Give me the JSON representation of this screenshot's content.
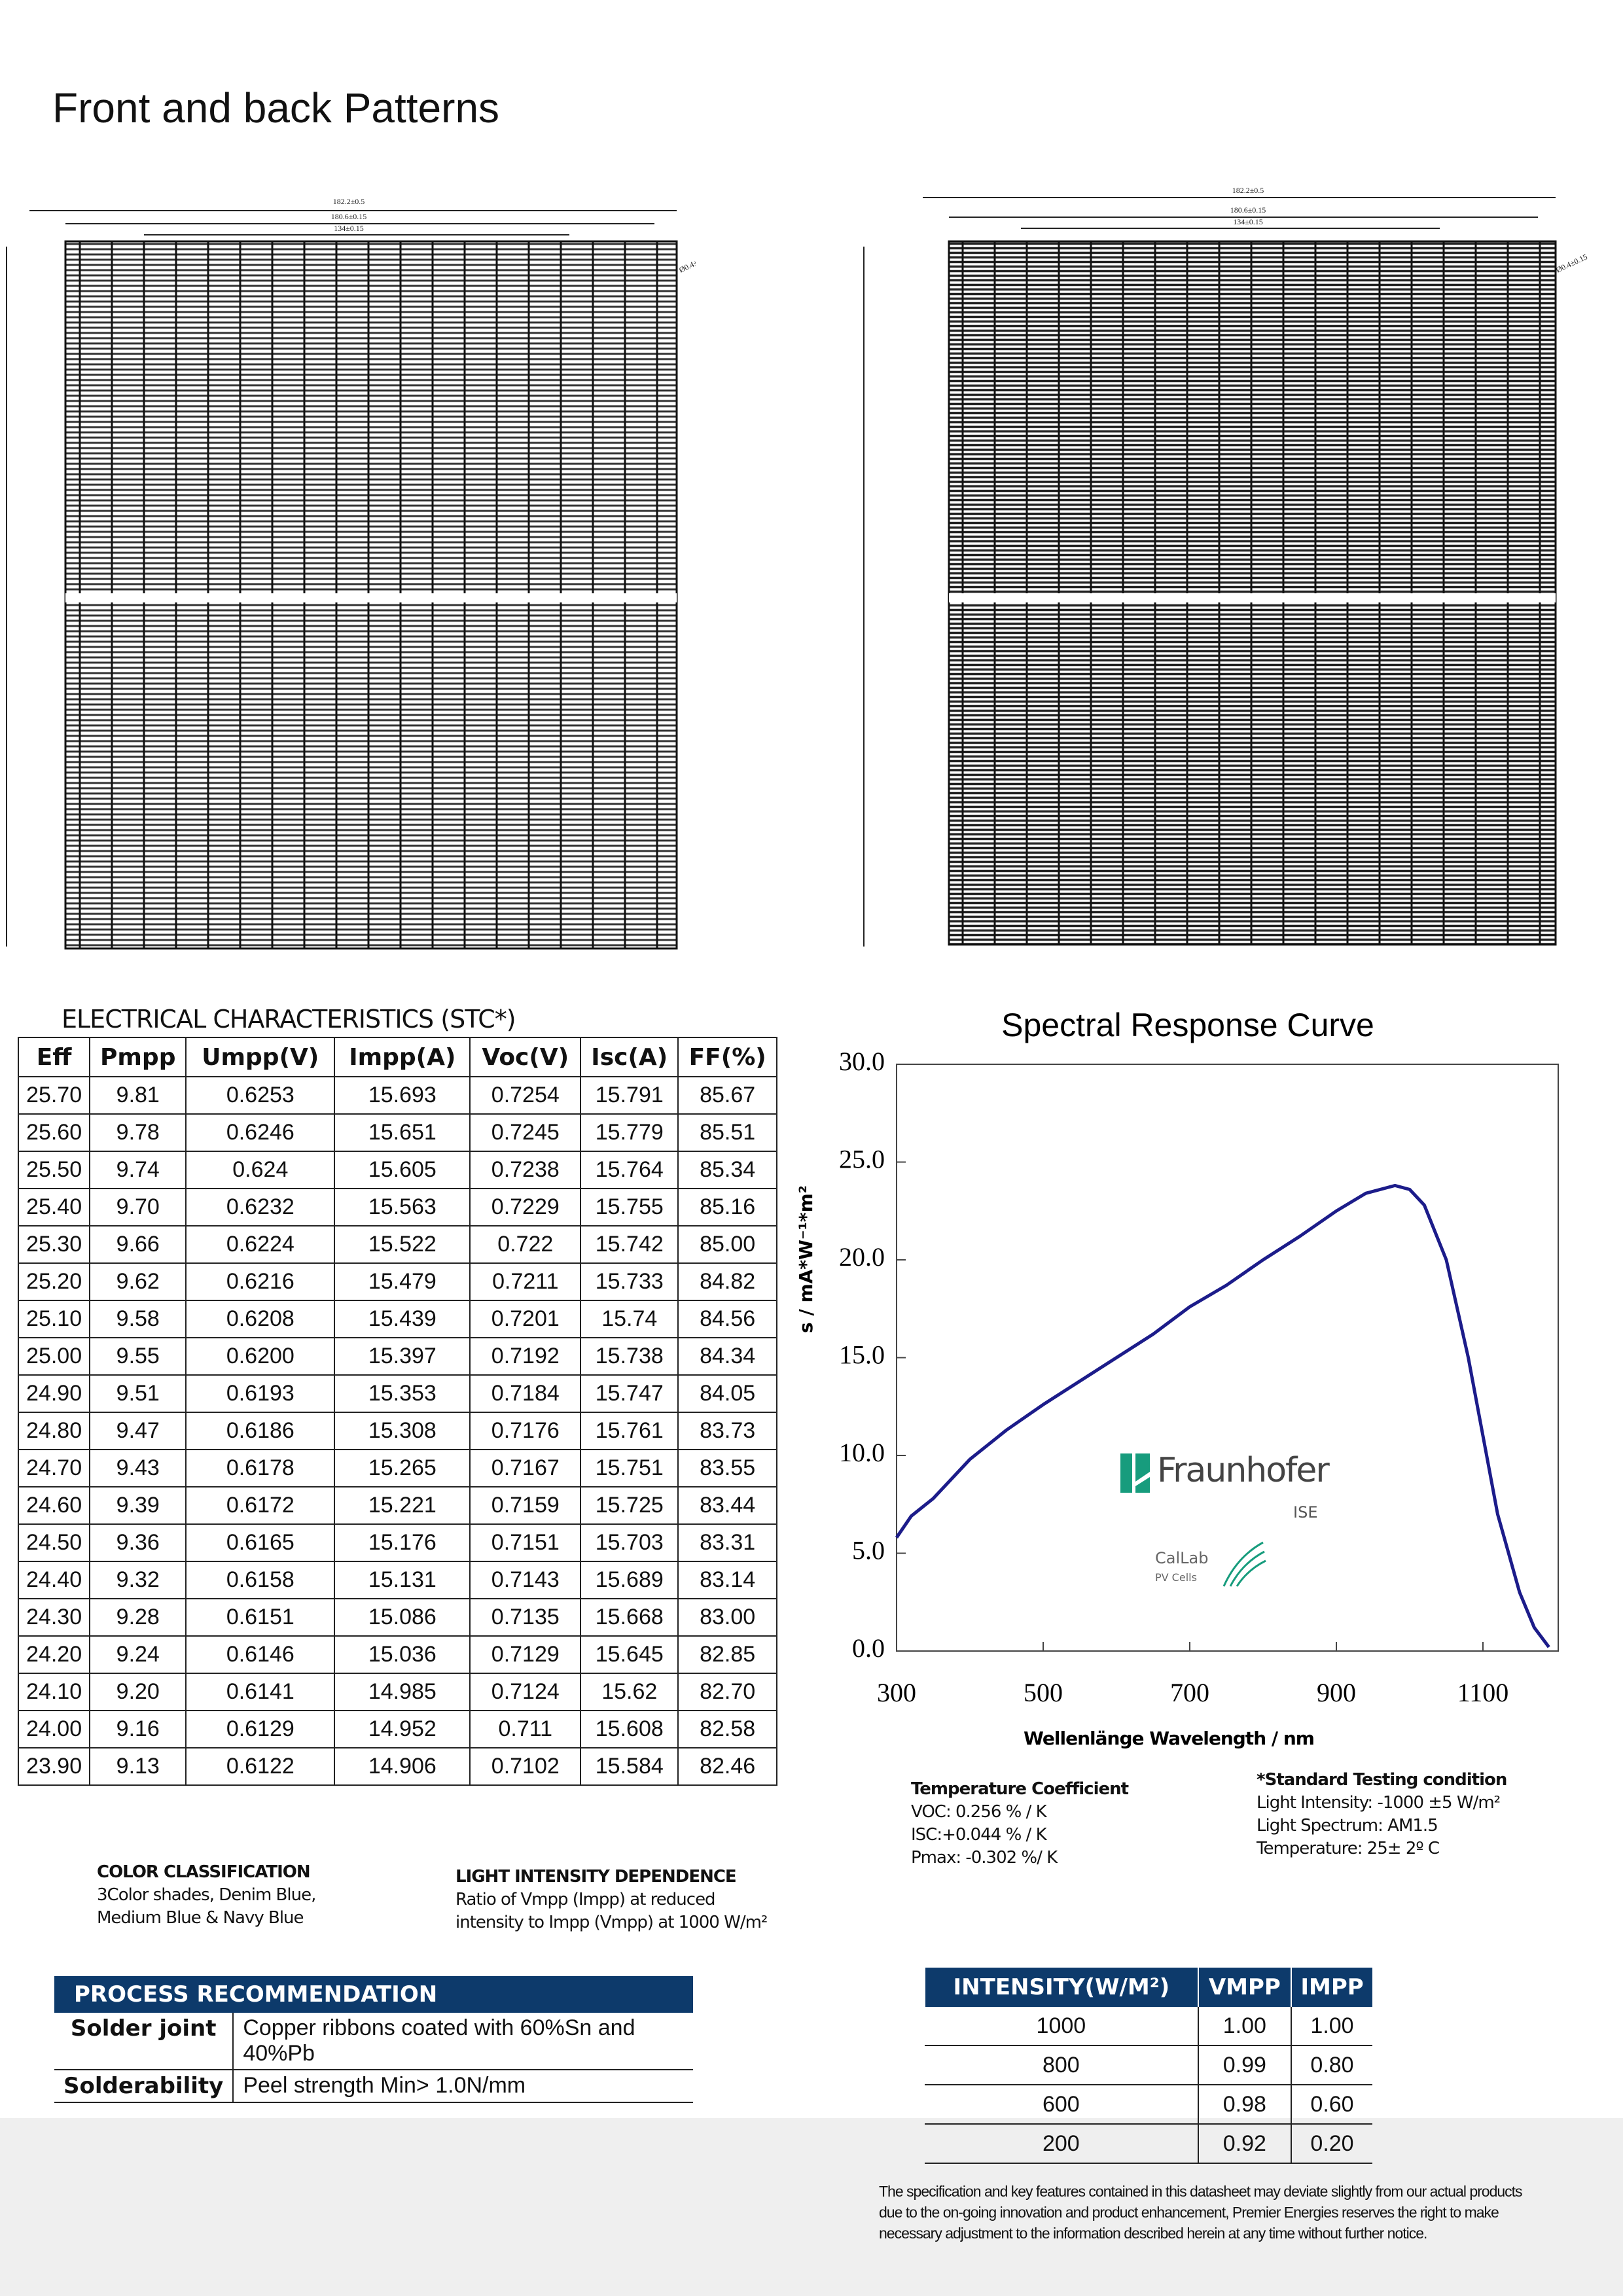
{
  "header": {
    "title": "Front and back Patterns"
  },
  "patterns": {
    "front": {
      "labels": [
        "182.2±0.5",
        "180.6±0.15",
        "134±0.15",
        "Ø0.4±0.15"
      ]
    },
    "back": {
      "labels": [
        "182.2±0.5",
        "180.6±0.15",
        "134±0.15",
        "Ø0.4±0.15"
      ]
    }
  },
  "electrical": {
    "title": "ELECTRICAL CHARACTERISTICS (STC*)",
    "columns": [
      "Eff",
      "Pmpp",
      "Umpp(V)",
      "Impp(A)",
      "Voc(V)",
      "Isc(A)",
      "FF(%)"
    ],
    "rows": [
      [
        "25.70",
        "9.81",
        "0.6253",
        "15.693",
        "0.7254",
        "15.791",
        "85.67"
      ],
      [
        "25.60",
        "9.78",
        "0.6246",
        "15.651",
        "0.7245",
        "15.779",
        "85.51"
      ],
      [
        "25.50",
        "9.74",
        "0.624",
        "15.605",
        "0.7238",
        "15.764",
        "85.34"
      ],
      [
        "25.40",
        "9.70",
        "0.6232",
        "15.563",
        "0.7229",
        "15.755",
        "85.16"
      ],
      [
        "25.30",
        "9.66",
        "0.6224",
        "15.522",
        "0.722",
        "15.742",
        "85.00"
      ],
      [
        "25.20",
        "9.62",
        "0.6216",
        "15.479",
        "0.7211",
        "15.733",
        "84.82"
      ],
      [
        "25.10",
        "9.58",
        "0.6208",
        "15.439",
        "0.7201",
        "15.74",
        "84.56"
      ],
      [
        "25.00",
        "9.55",
        "0.6200",
        "15.397",
        "0.7192",
        "15.738",
        "84.34"
      ],
      [
        "24.90",
        "9.51",
        "0.6193",
        "15.353",
        "0.7184",
        "15.747",
        "84.05"
      ],
      [
        "24.80",
        "9.47",
        "0.6186",
        "15.308",
        "0.7176",
        "15.761",
        "83.73"
      ],
      [
        "24.70",
        "9.43",
        "0.6178",
        "15.265",
        "0.7167",
        "15.751",
        "83.55"
      ],
      [
        "24.60",
        "9.39",
        "0.6172",
        "15.221",
        "0.7159",
        "15.725",
        "83.44"
      ],
      [
        "24.50",
        "9.36",
        "0.6165",
        "15.176",
        "0.7151",
        "15.703",
        "83.31"
      ],
      [
        "24.40",
        "9.32",
        "0.6158",
        "15.131",
        "0.7143",
        "15.689",
        "83.14"
      ],
      [
        "24.30",
        "9.28",
        "0.6151",
        "15.086",
        "0.7135",
        "15.668",
        "83.00"
      ],
      [
        "24.20",
        "9.24",
        "0.6146",
        "15.036",
        "0.7129",
        "15.645",
        "82.85"
      ],
      [
        "24.10",
        "9.20",
        "0.6141",
        "14.985",
        "0.7124",
        "15.62",
        "82.70"
      ],
      [
        "24.00",
        "9.16",
        "0.6129",
        "14.952",
        "0.711",
        "15.608",
        "82.58"
      ],
      [
        "23.90",
        "9.13",
        "0.6122",
        "14.906",
        "0.7102",
        "15.584",
        "82.46"
      ]
    ]
  },
  "chart_data": {
    "type": "line",
    "title": "Spectral Response Curve",
    "xlabel": "Wellenlänge Wavelength / nm",
    "ylabel": "s / mA*W⁻¹*m²",
    "x": [
      300,
      320,
      350,
      400,
      450,
      500,
      550,
      600,
      650,
      700,
      750,
      800,
      850,
      900,
      940,
      980,
      1000,
      1020,
      1050,
      1080,
      1100,
      1120,
      1150,
      1170,
      1190
    ],
    "series": [
      {
        "name": "Spectral response",
        "color": "#1c1c8a",
        "values": [
          5.8,
          6.9,
          7.8,
          9.8,
          11.3,
          12.6,
          13.8,
          15.0,
          16.2,
          17.6,
          18.7,
          20.0,
          21.2,
          22.5,
          23.4,
          23.8,
          23.6,
          22.8,
          20.0,
          15.0,
          11.0,
          7.0,
          3.0,
          1.2,
          0.2
        ]
      }
    ],
    "xlim": [
      300,
      1200
    ],
    "ylim": [
      0,
      30
    ],
    "xticks": [
      300,
      500,
      700,
      900,
      1100
    ],
    "yticks": [
      {
        "value": 0,
        "label": "0.0"
      },
      {
        "value": 5,
        "label": "5.0"
      },
      {
        "value": 10,
        "label": "10.0"
      },
      {
        "value": 15,
        "label": "15.0"
      },
      {
        "value": 20,
        "label": "20.0"
      },
      {
        "value": 25,
        "label": "25.0"
      },
      {
        "value": 30,
        "label": "30.0"
      }
    ]
  },
  "logo": {
    "name": "Fraunhofer",
    "unit": "ISE",
    "lab": "CalLab",
    "lab_sub": "PV Cells"
  },
  "temperature": {
    "title": "Temperature Coefficient",
    "lines": [
      "VOC: 0.256 % / K",
      "ISC:+0.044 % / K",
      "Pmax: -0.302 %/ K"
    ]
  },
  "stc": {
    "title": "*Standard Testing condition",
    "lines": [
      "Light Intensity: -1000 ±5 W/m²",
      "Light Spectrum: AM1.5",
      "Temperature: 25± 2º C"
    ]
  },
  "color_classification": {
    "title": "COLOR CLASSIFICATION",
    "text": "3Color shades, Denim Blue, Medium Blue & Navy Blue"
  },
  "light_intensity": {
    "title": "LIGHT INTENSITY DEPENDENCE",
    "text": "Ratio of Vmpp (Impp) at reduced intensity to Impp (Vmpp) at 1000 W/m²"
  },
  "process": {
    "title": "PROCESS RECOMMENDATION",
    "rows": [
      [
        "Solder joint",
        "Copper ribbons coated with 60%Sn and 40%Pb"
      ],
      [
        "Solderability",
        "Peel strength Min> 1.0N/mm"
      ]
    ]
  },
  "intensity_table": {
    "columns": [
      "INTENSITY(W/M²)",
      "VMPP",
      "IMPP"
    ],
    "rows": [
      [
        "1000",
        "1.00",
        "1.00"
      ],
      [
        "800",
        "0.99",
        "0.80"
      ],
      [
        "600",
        "0.98",
        "0.60"
      ],
      [
        "200",
        "0.92",
        "0.20"
      ]
    ]
  },
  "footer": "The specification and key features contained in this datasheet may deviate slightly from our actual products due to the on-going innovation and product enhancement, Premier Energies reserves the right to make necessary adjustment to the information described herein at any time without further notice."
}
